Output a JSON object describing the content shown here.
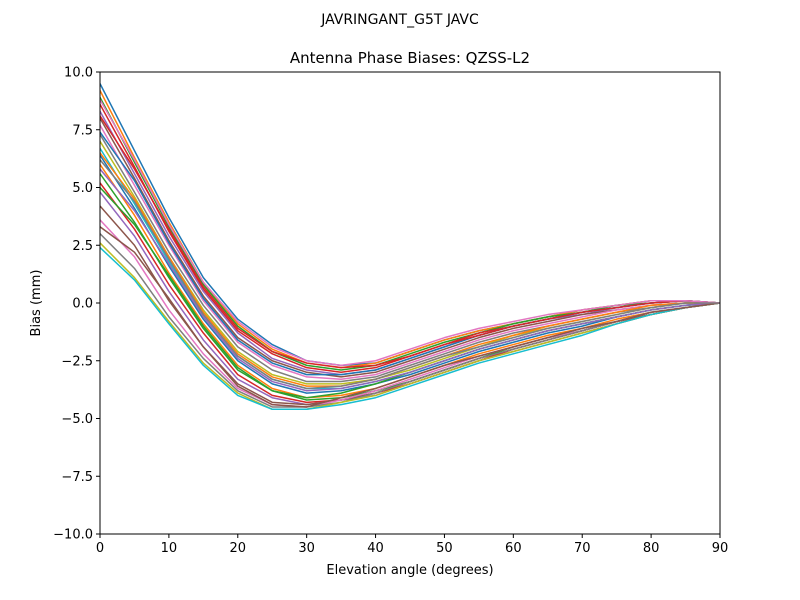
{
  "chart_data": {
    "type": "line",
    "suptitle": "JAVRINGANT_G5T  JAVC",
    "title": "Antenna Phase Biases: QZSS-L2",
    "xlabel": "Elevation angle (degrees)",
    "ylabel": "Bias (mm)",
    "xlim": [
      0,
      90
    ],
    "ylim": [
      -10,
      10
    ],
    "xticks": [
      0,
      10,
      20,
      30,
      40,
      50,
      60,
      70,
      80,
      90
    ],
    "yticks": [
      -10.0,
      -7.5,
      -5.0,
      -2.5,
      0.0,
      2.5,
      5.0,
      7.5,
      10.0
    ],
    "x": [
      0,
      5,
      10,
      15,
      20,
      25,
      30,
      35,
      40,
      45,
      50,
      55,
      60,
      65,
      70,
      75,
      80,
      85,
      90
    ],
    "legend": "none",
    "grid": false,
    "series": [
      {
        "values": [
          9.5,
          6.6,
          3.7,
          1.1,
          -0.7,
          -1.8,
          -2.5,
          -2.7,
          -2.6,
          -2.1,
          -1.6,
          -1.2,
          -0.9,
          -0.6,
          -0.3,
          -0.1,
          0.1,
          0.1,
          0.0
        ]
      },
      {
        "values": [
          9.2,
          6.3,
          3.5,
          0.9,
          -0.9,
          -2.0,
          -2.6,
          -2.8,
          -2.6,
          -2.1,
          -1.6,
          -1.2,
          -0.9,
          -0.6,
          -0.3,
          -0.1,
          0.1,
          0.1,
          0.0
        ]
      },
      {
        "values": [
          8.9,
          6.1,
          3.3,
          0.8,
          -1.0,
          -2.1,
          -2.7,
          -2.9,
          -2.7,
          -2.2,
          -1.7,
          -1.3,
          -0.9,
          -0.6,
          -0.4,
          -0.1,
          0.0,
          0.1,
          0.0
        ]
      },
      {
        "values": [
          8.6,
          5.9,
          3.1,
          0.6,
          -1.2,
          -2.2,
          -2.8,
          -3.0,
          -2.8,
          -2.3,
          -1.8,
          -1.3,
          -1.0,
          -0.7,
          -0.4,
          -0.2,
          0.0,
          0.1,
          0.0
        ]
      },
      {
        "values": [
          8.3,
          5.6,
          2.9,
          0.5,
          -1.3,
          -2.4,
          -2.9,
          -3.1,
          -2.9,
          -2.4,
          -1.9,
          -1.4,
          -1.0,
          -0.7,
          -0.5,
          -0.2,
          0.0,
          0.1,
          0.0
        ]
      },
      {
        "values": [
          8.0,
          5.4,
          2.7,
          0.3,
          -1.5,
          -2.5,
          -3.0,
          -3.2,
          -3.0,
          -2.5,
          -2.0,
          -1.5,
          -1.1,
          -0.8,
          -0.5,
          -0.3,
          -0.1,
          0.0,
          0.0
        ]
      },
      {
        "values": [
          7.7,
          5.1,
          2.5,
          0.1,
          -1.7,
          -2.7,
          -3.2,
          -3.3,
          -3.1,
          -2.6,
          -2.1,
          -1.6,
          -1.2,
          -0.9,
          -0.6,
          -0.3,
          -0.1,
          0.0,
          0.0
        ]
      },
      {
        "values": [
          7.3,
          4.8,
          2.2,
          -0.1,
          -1.9,
          -2.9,
          -3.4,
          -3.4,
          -3.2,
          -2.7,
          -2.2,
          -1.7,
          -1.3,
          -1.0,
          -0.7,
          -0.4,
          -0.2,
          0.0,
          0.0
        ]
      },
      {
        "values": [
          7.0,
          4.6,
          2.0,
          -0.3,
          -2.1,
          -3.1,
          -3.5,
          -3.5,
          -3.3,
          -2.9,
          -2.4,
          -1.9,
          -1.4,
          -1.1,
          -0.8,
          -0.5,
          -0.2,
          0.0,
          0.0
        ]
      },
      {
        "values": [
          6.7,
          4.3,
          1.8,
          -0.5,
          -2.3,
          -3.3,
          -3.7,
          -3.7,
          -3.4,
          -3.0,
          -2.5,
          -2.0,
          -1.6,
          -1.2,
          -0.9,
          -0.6,
          -0.3,
          -0.1,
          0.0
        ]
      },
      {
        "values": [
          6.4,
          4.1,
          1.6,
          -0.7,
          -2.5,
          -3.5,
          -3.9,
          -3.8,
          -3.5,
          -3.1,
          -2.6,
          -2.1,
          -1.7,
          -1.3,
          -1.0,
          -0.6,
          -0.3,
          -0.1,
          0.0
        ]
      },
      {
        "values": [
          6.0,
          3.8,
          1.3,
          -0.9,
          -2.7,
          -3.7,
          -4.1,
          -4.0,
          -3.7,
          -3.2,
          -2.7,
          -2.2,
          -1.8,
          -1.4,
          -1.1,
          -0.7,
          -0.4,
          -0.2,
          0.0
        ]
      },
      {
        "values": [
          5.6,
          3.5,
          1.1,
          -1.1,
          -2.9,
          -3.8,
          -4.2,
          -4.1,
          -3.8,
          -3.4,
          -2.9,
          -2.4,
          -1.9,
          -1.5,
          -1.2,
          -0.8,
          -0.5,
          -0.2,
          0.0
        ]
      },
      {
        "values": [
          5.2,
          3.2,
          0.8,
          -1.3,
          -3.1,
          -4.0,
          -4.3,
          -4.2,
          -3.9,
          -3.5,
          -3.0,
          -2.5,
          -2.0,
          -1.6,
          -1.2,
          -0.8,
          -0.5,
          -0.2,
          0.0
        ]
      },
      {
        "values": [
          4.8,
          2.9,
          0.5,
          -1.6,
          -3.3,
          -4.1,
          -4.4,
          -4.2,
          -4.0,
          -3.5,
          -3.0,
          -2.5,
          -2.1,
          -1.7,
          -1.3,
          -0.9,
          -0.5,
          -0.2,
          0.0
        ]
      },
      {
        "values": [
          4.2,
          2.5,
          0.1,
          -1.9,
          -3.5,
          -4.3,
          -4.4,
          -4.2,
          -3.9,
          -3.4,
          -2.9,
          -2.4,
          -2.0,
          -1.6,
          -1.2,
          -0.8,
          -0.5,
          -0.2,
          0.0
        ]
      },
      {
        "values": [
          3.6,
          2.0,
          -0.3,
          -2.2,
          -3.7,
          -4.4,
          -4.5,
          -4.2,
          -3.8,
          -3.3,
          -2.8,
          -2.3,
          -1.9,
          -1.5,
          -1.2,
          -0.8,
          -0.4,
          -0.2,
          0.0
        ]
      },
      {
        "values": [
          3.0,
          1.5,
          -0.6,
          -2.4,
          -3.8,
          -4.5,
          -4.5,
          -4.3,
          -3.9,
          -3.4,
          -2.9,
          -2.4,
          -2.0,
          -1.6,
          -1.2,
          -0.8,
          -0.4,
          -0.2,
          0.0
        ]
      },
      {
        "values": [
          2.6,
          1.1,
          -0.8,
          -2.6,
          -3.9,
          -4.6,
          -4.6,
          -4.3,
          -4.0,
          -3.5,
          -3.0,
          -2.5,
          -2.1,
          -1.7,
          -1.3,
          -0.9,
          -0.5,
          -0.2,
          0.0
        ]
      },
      {
        "values": [
          2.4,
          1.0,
          -0.9,
          -2.7,
          -4.0,
          -4.6,
          -4.6,
          -4.4,
          -4.1,
          -3.6,
          -3.1,
          -2.6,
          -2.2,
          -1.8,
          -1.4,
          -0.9,
          -0.5,
          -0.2,
          0.0
        ]
      },
      {
        "values": [
          7.4,
          5.3,
          2.6,
          0.2,
          -1.6,
          -2.6,
          -3.1,
          -3.1,
          -2.9,
          -2.4,
          -1.9,
          -1.4,
          -1.0,
          -0.7,
          -0.4,
          -0.2,
          0.0,
          0.1,
          0.0
        ]
      },
      {
        "values": [
          6.5,
          4.5,
          2.0,
          -0.4,
          -2.2,
          -3.2,
          -3.6,
          -3.6,
          -3.3,
          -2.8,
          -2.3,
          -1.8,
          -1.4,
          -1.0,
          -0.7,
          -0.4,
          -0.1,
          0.0,
          0.0
        ]
      },
      {
        "values": [
          5.0,
          3.4,
          1.2,
          -1.0,
          -2.8,
          -3.8,
          -4.1,
          -3.9,
          -3.5,
          -3.0,
          -2.5,
          -2.0,
          -1.6,
          -1.2,
          -0.9,
          -0.6,
          -0.3,
          -0.1,
          0.0
        ]
      },
      {
        "values": [
          8.1,
          5.8,
          3.2,
          0.7,
          -1.1,
          -2.1,
          -2.6,
          -2.8,
          -2.7,
          -2.3,
          -1.8,
          -1.4,
          -1.0,
          -0.7,
          -0.4,
          -0.2,
          0.0,
          0.1,
          0.0
        ]
      },
      {
        "values": [
          5.8,
          4.0,
          1.7,
          -0.6,
          -2.4,
          -3.4,
          -3.8,
          -3.7,
          -3.4,
          -3.0,
          -2.5,
          -2.0,
          -1.6,
          -1.2,
          -0.9,
          -0.6,
          -0.3,
          -0.1,
          0.0
        ]
      },
      {
        "values": [
          3.3,
          2.2,
          0.2,
          -1.9,
          -3.6,
          -4.4,
          -4.5,
          -4.1,
          -3.7,
          -3.2,
          -2.7,
          -2.3,
          -1.9,
          -1.5,
          -1.1,
          -0.8,
          -0.4,
          -0.2,
          0.0
        ]
      },
      {
        "values": [
          8.8,
          6.2,
          3.4,
          0.9,
          -0.8,
          -1.9,
          -2.5,
          -2.7,
          -2.5,
          -2.0,
          -1.5,
          -1.1,
          -0.8,
          -0.5,
          -0.3,
          -0.1,
          0.1,
          0.1,
          0.0
        ]
      },
      {
        "values": [
          6.2,
          4.4,
          1.9,
          -0.5,
          -2.3,
          -3.3,
          -3.7,
          -3.6,
          -3.3,
          -2.8,
          -2.3,
          -1.9,
          -1.5,
          -1.1,
          -0.8,
          -0.5,
          -0.2,
          0.0,
          0.0
        ]
      }
    ]
  }
}
